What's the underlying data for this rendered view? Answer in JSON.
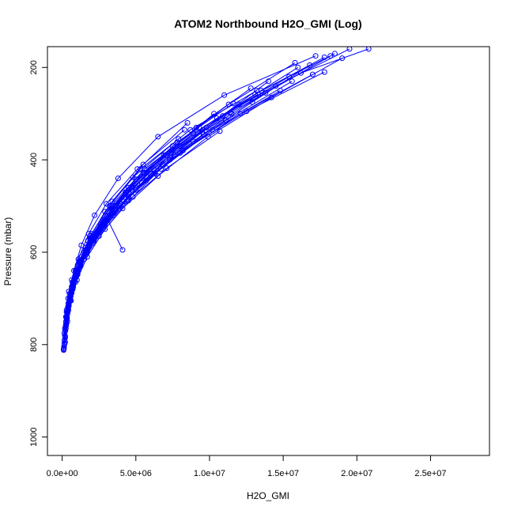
{
  "chart_data": {
    "type": "line",
    "title": "ATOM2 Northbound H2O_GMI (Log)",
    "xlabel": "H2O_GMI",
    "ylabel": "Pressure (mbar)",
    "xlim": [
      -1000000,
      29000000
    ],
    "ylim": [
      1040,
      155
    ],
    "y_reversed": true,
    "x_ticks": [
      0,
      5000000,
      10000000,
      15000000,
      20000000,
      25000000
    ],
    "x_tick_labels": [
      "0.0e+00",
      "5.0e+06",
      "1.0e+07",
      "1.5e+07",
      "2.0e+07",
      "2.5e+07"
    ],
    "y_ticks": [
      200,
      400,
      600,
      800,
      1000
    ],
    "y_tick_labels": [
      "200",
      "400",
      "600",
      "800",
      "1000"
    ],
    "grid": false,
    "legend": "none",
    "color": "#0000ff",
    "marker": "open-circle",
    "series": [
      {
        "x": [
          100000,
          200000,
          300000,
          500000,
          900000,
          1600000,
          2800000,
          4500000,
          7000000,
          10500000,
          14500000,
          19500000
        ],
        "y": [
          810,
          770,
          730,
          690,
          640,
          590,
          530,
          460,
          390,
          310,
          240,
          160
        ]
      },
      {
        "x": [
          150000,
          250000,
          400000,
          700000,
          1200000,
          2100000,
          3600000,
          6200000,
          9800000,
          14000000
        ],
        "y": [
          800,
          760,
          720,
          680,
          630,
          570,
          500,
          420,
          330,
          230
        ]
      },
      {
        "x": [
          200000,
          350000,
          600000,
          1000000,
          1700000,
          2900000,
          4800000,
          7600000,
          11500000
        ],
        "y": [
          795,
          750,
          705,
          660,
          610,
          550,
          480,
          390,
          300
        ]
      },
      {
        "x": [
          120000,
          180000,
          300000,
          450000,
          800000,
          1300000,
          2200000,
          3800000,
          6500000,
          11000000,
          17200000
        ],
        "y": [
          805,
          765,
          725,
          685,
          640,
          585,
          520,
          440,
          350,
          260,
          175
        ]
      },
      {
        "x": [
          250000,
          400000,
          700000,
          1200000,
          2000000,
          3400000,
          5500000,
          8500000
        ],
        "y": [
          760,
          720,
          670,
          620,
          560,
          490,
          410,
          320
        ]
      },
      {
        "x": [
          300000,
          500000,
          900000,
          1500000,
          2600000,
          4300000,
          6900000,
          10300000
        ],
        "y": [
          740,
          700,
          650,
          600,
          540,
          470,
          390,
          300
        ]
      },
      {
        "x": [
          180000,
          300000,
          550000,
          900000,
          1600000,
          2800000,
          4700000,
          7500000,
          11300000,
          15800000
        ],
        "y": [
          780,
          740,
          695,
          650,
          595,
          535,
          460,
          370,
          280,
          190
        ]
      },
      {
        "x": [
          220000,
          380000,
          650000,
          1100000,
          1900000,
          3300000,
          5600000,
          9300000
        ],
        "y": [
          770,
          730,
          680,
          630,
          570,
          500,
          420,
          330
        ]
      },
      {
        "x": [
          400000,
          700000,
          1200000,
          2100000,
          3500000,
          5400000,
          8000000,
          12000000,
          16000000
        ],
        "y": [
          720,
          680,
          630,
          580,
          520,
          450,
          370,
          280,
          200
        ]
      },
      {
        "x": [
          350000,
          600000,
          1000000,
          1800000,
          3100000,
          4100000
        ],
        "y": [
          730,
          690,
          640,
          590,
          530,
          595
        ]
      },
      {
        "x": [
          160000,
          260000,
          420000,
          700000,
          1150000,
          1900000,
          3200000,
          5300000,
          8700000,
          13200000
        ],
        "y": [
          790,
          750,
          710,
          665,
          620,
          565,
          500,
          420,
          335,
          250
        ]
      },
      {
        "x": [
          500000,
          800000,
          1300000,
          2300000,
          3900000,
          6300000,
          9600000
        ],
        "y": [
          700,
          660,
          610,
          560,
          500,
          430,
          345
        ]
      },
      {
        "x": [
          280000,
          450000,
          750000,
          1300000,
          2200000,
          3700000,
          6000000,
          9100000,
          12800000
        ],
        "y": [
          755,
          715,
          670,
          620,
          565,
          500,
          420,
          330,
          245
        ]
      },
      {
        "x": [
          120000,
          200000,
          350000,
          600000,
          1000000,
          1700000,
          2900000,
          5000000,
          8200000,
          12500000,
          17800000
        ],
        "y": [
          808,
          770,
          730,
          690,
          645,
          595,
          535,
          460,
          380,
          295,
          210
        ]
      },
      {
        "x": [
          600000,
          1000000,
          1600000,
          2600000,
          4200000,
          6700000,
          10200000,
          14800000
        ],
        "y": [
          690,
          650,
          600,
          550,
          490,
          420,
          335,
          250
        ]
      },
      {
        "x": [
          100000,
          150000,
          250000,
          400000,
          650000,
          1100000,
          1800000,
          3000000,
          5100000,
          8300000
        ],
        "y": [
          812,
          775,
          740,
          700,
          660,
          615,
          560,
          495,
          420,
          335
        ]
      },
      {
        "x": [
          700000,
          1100000,
          1800000,
          2900000,
          4500000,
          6800000,
          9800000,
          13500000,
          18200000
        ],
        "y": [
          680,
          640,
          590,
          540,
          480,
          410,
          330,
          250,
          175
        ]
      },
      {
        "x": [
          300000,
          500000,
          850000,
          1450000,
          2400000,
          3900000
        ],
        "y": [
          745,
          705,
          660,
          610,
          555,
          495
        ]
      },
      {
        "x": [
          200000,
          320000,
          540000,
          920000,
          1550000,
          2600000,
          4300000,
          7100000,
          10900000,
          15400000
        ],
        "y": [
          785,
          745,
          700,
          655,
          605,
          545,
          475,
          390,
          305,
          220
        ]
      },
      {
        "x": [
          450000,
          750000,
          1250000,
          2100000,
          3500000,
          5700000,
          8900000,
          12900000,
          16800000
        ],
        "y": [
          715,
          675,
          625,
          575,
          515,
          445,
          360,
          275,
          195
        ]
      },
      {
        "x": [
          250000,
          420000,
          720000,
          1250000,
          2150000,
          3650000,
          6000000,
          9500000,
          13800000,
          18500000
        ],
        "y": [
          765,
          725,
          680,
          630,
          575,
          510,
          430,
          340,
          255,
          170
        ]
      },
      {
        "x": [
          350000,
          580000,
          980000,
          1650000,
          2750000,
          4500000,
          7300000,
          11100000,
          15600000
        ],
        "y": [
          735,
          695,
          650,
          600,
          545,
          480,
          400,
          315,
          230
        ]
      },
      {
        "x": [
          150000,
          240000,
          390000,
          640000,
          1050000,
          1750000,
          2900000,
          4800000,
          7900000
        ],
        "y": [
          798,
          758,
          718,
          675,
          628,
          575,
          512,
          438,
          355
        ]
      },
      {
        "x": [
          550000,
          900000,
          1500000,
          2500000,
          4100000,
          6500000,
          9900000,
          14200000,
          19000000
        ],
        "y": [
          705,
          665,
          615,
          565,
          505,
          435,
          350,
          265,
          180
        ]
      },
      {
        "x": [
          380000,
          640000,
          1080000,
          1820000,
          3050000,
          5000000,
          8000000,
          12100000,
          17000000
        ],
        "y": [
          725,
          685,
          638,
          588,
          532,
          465,
          385,
          300,
          215
        ]
      },
      {
        "x": [
          200000,
          330000,
          560000,
          950000,
          1600000,
          2700000,
          4500000,
          7400000,
          11400000,
          16200000,
          20800000
        ],
        "y": [
          782,
          742,
          698,
          652,
          602,
          542,
          470,
          385,
          298,
          212,
          160
        ]
      },
      {
        "x": [
          450000,
          720000,
          1150000,
          1900000,
          3100000,
          5000000,
          7800000,
          11600000
        ],
        "y": [
          712,
          672,
          622,
          572,
          512,
          442,
          362,
          278
        ]
      },
      {
        "x": [
          270000,
          440000,
          730000,
          1230000,
          2060000,
          3430000,
          5600000,
          8900000,
          13100000,
          17800000
        ],
        "y": [
          758,
          718,
          672,
          622,
          568,
          505,
          428,
          343,
          258,
          178
        ]
      },
      {
        "x": [
          160000,
          260000,
          430000,
          720000,
          1200000,
          2000000,
          3350000,
          5500000,
          8900000,
          13300000
        ],
        "y": [
          792,
          752,
          712,
          668,
          622,
          568,
          505,
          428,
          343,
          258
        ]
      },
      {
        "x": [
          650000,
          1050000,
          1700000,
          2800000,
          4500000,
          7100000,
          10700000
        ],
        "y": [
          688,
          648,
          598,
          548,
          488,
          418,
          338
        ]
      }
    ]
  }
}
